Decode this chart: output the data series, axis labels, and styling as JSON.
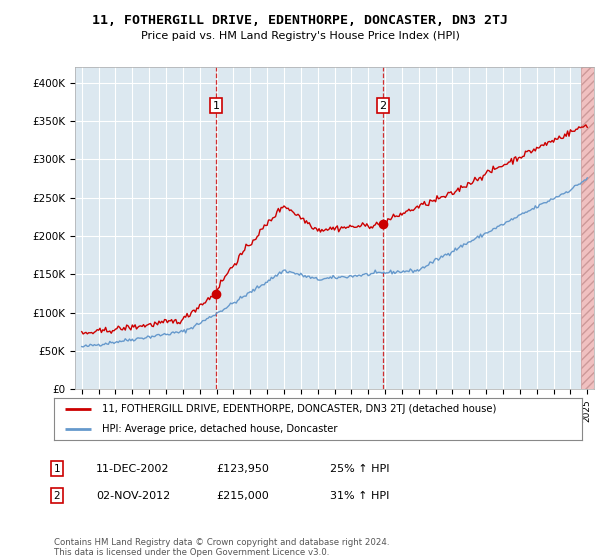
{
  "title": "11, FOTHERGILL DRIVE, EDENTHORPE, DONCASTER, DN3 2TJ",
  "subtitle": "Price paid vs. HM Land Registry's House Price Index (HPI)",
  "ylim": [
    0,
    420000
  ],
  "yticks": [
    0,
    50000,
    100000,
    150000,
    200000,
    250000,
    300000,
    350000,
    400000
  ],
  "ytick_labels": [
    "£0",
    "£50K",
    "£100K",
    "£150K",
    "£200K",
    "£250K",
    "£300K",
    "£350K",
    "£400K"
  ],
  "background_color": "#dce8f0",
  "grid_color": "#ffffff",
  "hpi_line_color": "#6699cc",
  "price_line_color": "#cc0000",
  "sale1_price": 123950,
  "sale1_date": "11-DEC-2002",
  "sale1_pct": "25% ↑ HPI",
  "sale2_price": 215000,
  "sale2_date": "02-NOV-2012",
  "sale2_pct": "31% ↑ HPI",
  "legend_line1": "11, FOTHERGILL DRIVE, EDENTHORPE, DONCASTER, DN3 2TJ (detached house)",
  "legend_line2": "HPI: Average price, detached house, Doncaster",
  "footnote": "Contains HM Land Registry data © Crown copyright and database right 2024.\nThis data is licensed under the Open Government Licence v3.0."
}
